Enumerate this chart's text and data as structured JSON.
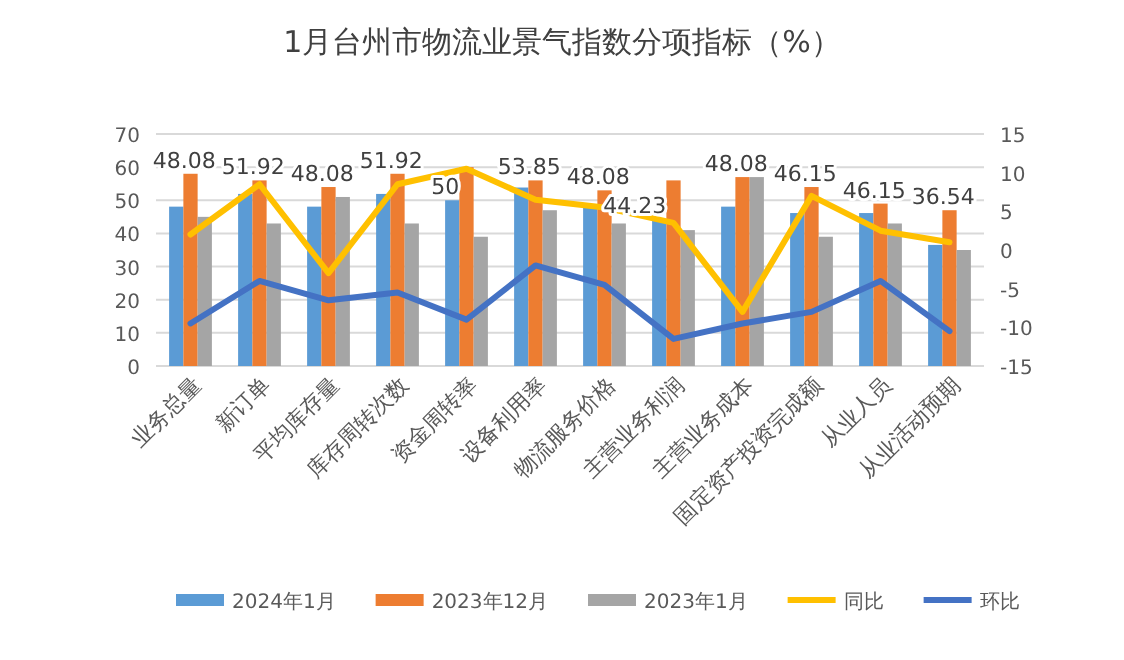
{
  "chart_data": {
    "type": "bar",
    "title": "1月台州市物流业景气指数分项指标（%）",
    "categories": [
      "业务总量",
      "新订单",
      "平均库存量",
      "库存周转次数",
      "资金周转率",
      "设备利用率",
      "物流服务价格",
      "主营业务利润",
      "主营业务成本",
      "固定资产投资完成额",
      "从业人员",
      "从业活动预期"
    ],
    "series": [
      {
        "name": "2024年1月",
        "color": "#5b9bd5",
        "values": [
          48.08,
          51.92,
          48.08,
          51.92,
          50,
          53.85,
          48.08,
          44.23,
          48.08,
          46.15,
          46.15,
          36.54
        ],
        "value_labels": [
          "48.08",
          "51.92",
          "48.08",
          "51.92",
          "50",
          "53.85",
          "48.08",
          "44.23",
          "48.08",
          "46.15",
          "46.15",
          "36.54"
        ]
      },
      {
        "name": "2023年12月",
        "color": "#ed7d31",
        "values": [
          58,
          56,
          54,
          58,
          60,
          56,
          53,
          56,
          57,
          54,
          49,
          47
        ]
      },
      {
        "name": "2023年1月",
        "color": "#a5a5a5",
        "values": [
          45,
          43,
          51,
          43,
          39,
          47,
          43,
          41,
          57,
          39,
          43,
          35
        ]
      },
      {
        "name": "同比",
        "type": "line",
        "axis": "y2",
        "color": "#ffc000",
        "values": [
          2,
          8.5,
          -3,
          8.5,
          10.5,
          6.5,
          5.5,
          3.5,
          -8,
          7,
          2.5,
          1
        ]
      },
      {
        "name": "环比",
        "type": "line",
        "axis": "y2",
        "color": "#4472c4",
        "values": [
          -9.5,
          -4,
          -6.5,
          -5.5,
          -9,
          -2,
          -4.5,
          -11.5,
          -9.5,
          -8,
          -4,
          -10.5
        ]
      }
    ],
    "ylim": [
      0,
      70
    ],
    "yticks": [
      0,
      10,
      20,
      30,
      40,
      50,
      60,
      70
    ],
    "y2lim": [
      -15,
      15
    ],
    "y2ticks": [
      -15,
      -10,
      -5,
      0,
      5,
      10,
      15
    ],
    "grid": "y",
    "legend": "bottom",
    "marker": "none",
    "line_style": "solid"
  }
}
